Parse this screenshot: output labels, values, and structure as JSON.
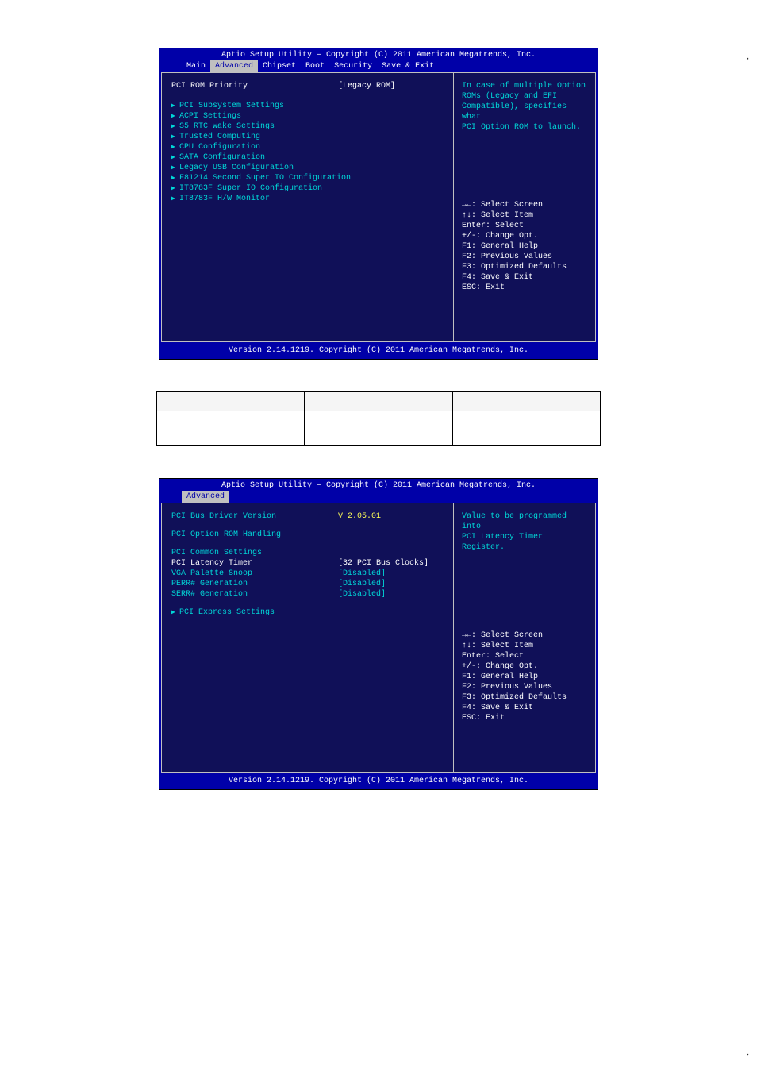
{
  "doc": {
    "title_line": "Aptio Setup Utility – Copyright (C) 2011 American Megatrends, Inc.",
    "footer_line": "Version 2.14.1219. Copyright (C) 2011 American Megatrends, Inc.",
    "comma": ","
  },
  "colors": {
    "bios_bg": "#0000a8",
    "panel_bg": "#101058",
    "tab_active_bg": "#c0c0c0",
    "text_white": "#ffffff",
    "text_grey": "#a8a8a8",
    "text_cyan": "#00d7d7",
    "text_yellow": "#ffff57"
  },
  "tabs": [
    "Main",
    "Advanced",
    "Chipset",
    "Boot",
    "Security",
    "Save & Exit"
  ],
  "bios1": {
    "active_tab_index": 1,
    "top_row": {
      "label": "PCI ROM Priority",
      "value": "[Legacy ROM]"
    },
    "menu_items": [
      "PCI Subsystem Settings",
      "ACPI Settings",
      "S5 RTC Wake Settings",
      "Trusted Computing",
      "CPU Configuration",
      "SATA Configuration",
      "Legacy USB Configuration",
      "F81214 Second Super IO Configuration",
      "IT8783F Super IO Configuration",
      "IT8783F H/W Monitor"
    ],
    "help_text": [
      "In case of multiple Option",
      "ROMs (Legacy and EFI",
      "Compatible), specifies what",
      "PCI Option ROM to launch."
    ]
  },
  "bios2": {
    "active_tab_index": 1,
    "show_only_active_tab": true,
    "info_rows": [
      {
        "label": "PCI Bus Driver Version",
        "value": "V 2.05.01",
        "value_color": "yellow"
      }
    ],
    "subtitle": "PCI Option ROM Handling",
    "section_title": "PCI Common Settings",
    "setting_rows": [
      {
        "label": "PCI Latency Timer",
        "value": "[32 PCI Bus Clocks]"
      },
      {
        "label": "VGA Palette Snoop",
        "value": "[Disabled]"
      },
      {
        "label": "PERR# Generation",
        "value": "[Disabled]"
      },
      {
        "label": "SERR# Generation",
        "value": "[Disabled]"
      }
    ],
    "submenu": "PCI Express Settings",
    "help_text": [
      "Value to be programmed into",
      "PCI Latency Timer Register."
    ]
  },
  "nav_help": [
    {
      "t": "→←: Select Screen",
      "c": "white"
    },
    {
      "t": "↑↓: Select Item",
      "c": "white"
    },
    {
      "t": "Enter: Select",
      "c": "white"
    },
    {
      "t": "+/-: Change Opt.",
      "c": "white"
    },
    {
      "t": "F1: General Help",
      "c": "white"
    },
    {
      "t": "F2: Previous Values",
      "c": "white"
    },
    {
      "t": "F3: Optimized Defaults",
      "c": "white"
    },
    {
      "t": "F4: Save & Exit",
      "c": "white"
    },
    {
      "t": "ESC: Exit",
      "c": "white"
    }
  ],
  "mid_table": {
    "headers": [
      "",
      "",
      ""
    ],
    "rows": [
      [
        "",
        "",
        ""
      ]
    ]
  }
}
